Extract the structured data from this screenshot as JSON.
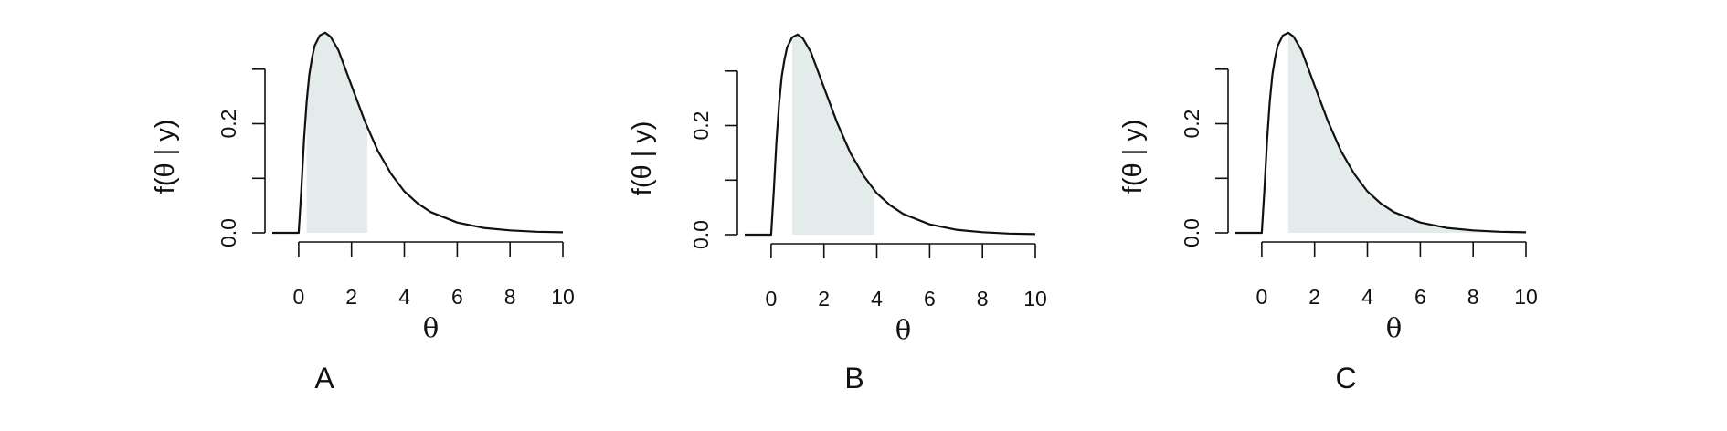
{
  "colors": {
    "shade": "#e3eceb",
    "line": "#111111"
  },
  "chart_data": [
    {
      "type": "area",
      "panel_label": "A",
      "xlabel": "θ",
      "ylabel": "f(θ | y)",
      "xlim": [
        -1,
        10
      ],
      "ylim": [
        0,
        0.37
      ],
      "x_ticks": [
        0,
        2,
        4,
        6,
        8,
        10
      ],
      "y_ticks": [
        0,
        0.1,
        0.2,
        0.3
      ],
      "y_tick_labels": [
        "0.0",
        "",
        "0.2",
        ""
      ],
      "grid": false,
      "shaded_interval": [
        0.3,
        2.6
      ],
      "series": [
        {
          "values": [
            {
              "x": -1,
              "y": 0
            },
            {
              "x": 0,
              "y": 0
            },
            {
              "x": 0.1,
              "y": 0.08
            },
            {
              "x": 0.2,
              "y": 0.17
            },
            {
              "x": 0.3,
              "y": 0.24
            },
            {
              "x": 0.4,
              "y": 0.29
            },
            {
              "x": 0.5,
              "y": 0.32
            },
            {
              "x": 0.6,
              "y": 0.343
            },
            {
              "x": 0.8,
              "y": 0.362
            },
            {
              "x": 1.0,
              "y": 0.367
            },
            {
              "x": 1.2,
              "y": 0.36
            },
            {
              "x": 1.5,
              "y": 0.335
            },
            {
              "x": 2.0,
              "y": 0.27
            },
            {
              "x": 2.5,
              "y": 0.205
            },
            {
              "x": 3.0,
              "y": 0.15
            },
            {
              "x": 3.5,
              "y": 0.108
            },
            {
              "x": 4.0,
              "y": 0.076
            },
            {
              "x": 4.5,
              "y": 0.054
            },
            {
              "x": 5.0,
              "y": 0.038
            },
            {
              "x": 6.0,
              "y": 0.019
            },
            {
              "x": 7.0,
              "y": 0.009
            },
            {
              "x": 8.0,
              "y": 0.0045
            },
            {
              "x": 9.0,
              "y": 0.002
            },
            {
              "x": 10.0,
              "y": 0.001
            }
          ]
        }
      ]
    },
    {
      "type": "area",
      "panel_label": "B",
      "xlabel": "θ",
      "ylabel": "f(θ | y)",
      "xlim": [
        -1,
        10
      ],
      "ylim": [
        0,
        0.37
      ],
      "x_ticks": [
        0,
        2,
        4,
        6,
        8,
        10
      ],
      "y_ticks": [
        0,
        0.1,
        0.2,
        0.3
      ],
      "y_tick_labels": [
        "0.0",
        "",
        "0.2",
        ""
      ],
      "grid": false,
      "shaded_interval": [
        0.8,
        3.9
      ],
      "series": [
        {
          "values": [
            {
              "x": -1,
              "y": 0
            },
            {
              "x": 0,
              "y": 0
            },
            {
              "x": 0.1,
              "y": 0.08
            },
            {
              "x": 0.2,
              "y": 0.17
            },
            {
              "x": 0.3,
              "y": 0.24
            },
            {
              "x": 0.4,
              "y": 0.29
            },
            {
              "x": 0.5,
              "y": 0.32
            },
            {
              "x": 0.6,
              "y": 0.343
            },
            {
              "x": 0.8,
              "y": 0.362
            },
            {
              "x": 1.0,
              "y": 0.367
            },
            {
              "x": 1.2,
              "y": 0.36
            },
            {
              "x": 1.5,
              "y": 0.335
            },
            {
              "x": 2.0,
              "y": 0.27
            },
            {
              "x": 2.5,
              "y": 0.205
            },
            {
              "x": 3.0,
              "y": 0.15
            },
            {
              "x": 3.5,
              "y": 0.108
            },
            {
              "x": 4.0,
              "y": 0.076
            },
            {
              "x": 4.5,
              "y": 0.054
            },
            {
              "x": 5.0,
              "y": 0.038
            },
            {
              "x": 6.0,
              "y": 0.019
            },
            {
              "x": 7.0,
              "y": 0.009
            },
            {
              "x": 8.0,
              "y": 0.0045
            },
            {
              "x": 9.0,
              "y": 0.002
            },
            {
              "x": 10.0,
              "y": 0.001
            }
          ]
        }
      ]
    },
    {
      "type": "area",
      "panel_label": "C",
      "xlabel": "θ",
      "ylabel": "f(θ | y)",
      "xlim": [
        -1,
        10
      ],
      "ylim": [
        0,
        0.37
      ],
      "x_ticks": [
        0,
        2,
        4,
        6,
        8,
        10
      ],
      "y_ticks": [
        0,
        0.1,
        0.2,
        0.3
      ],
      "y_tick_labels": [
        "0.0",
        "",
        "0.2",
        ""
      ],
      "grid": false,
      "shaded_interval": [
        1.0,
        10.0
      ],
      "series": [
        {
          "values": [
            {
              "x": -1,
              "y": 0
            },
            {
              "x": 0,
              "y": 0
            },
            {
              "x": 0.1,
              "y": 0.08
            },
            {
              "x": 0.2,
              "y": 0.17
            },
            {
              "x": 0.3,
              "y": 0.24
            },
            {
              "x": 0.4,
              "y": 0.29
            },
            {
              "x": 0.5,
              "y": 0.32
            },
            {
              "x": 0.6,
              "y": 0.343
            },
            {
              "x": 0.8,
              "y": 0.362
            },
            {
              "x": 1.0,
              "y": 0.367
            },
            {
              "x": 1.2,
              "y": 0.36
            },
            {
              "x": 1.5,
              "y": 0.335
            },
            {
              "x": 2.0,
              "y": 0.27
            },
            {
              "x": 2.5,
              "y": 0.205
            },
            {
              "x": 3.0,
              "y": 0.15
            },
            {
              "x": 3.5,
              "y": 0.108
            },
            {
              "x": 4.0,
              "y": 0.076
            },
            {
              "x": 4.5,
              "y": 0.054
            },
            {
              "x": 5.0,
              "y": 0.038
            },
            {
              "x": 6.0,
              "y": 0.019
            },
            {
              "x": 7.0,
              "y": 0.009
            },
            {
              "x": 8.0,
              "y": 0.0045
            },
            {
              "x": 9.0,
              "y": 0.002
            },
            {
              "x": 10.0,
              "y": 0.001
            }
          ]
        }
      ]
    }
  ]
}
